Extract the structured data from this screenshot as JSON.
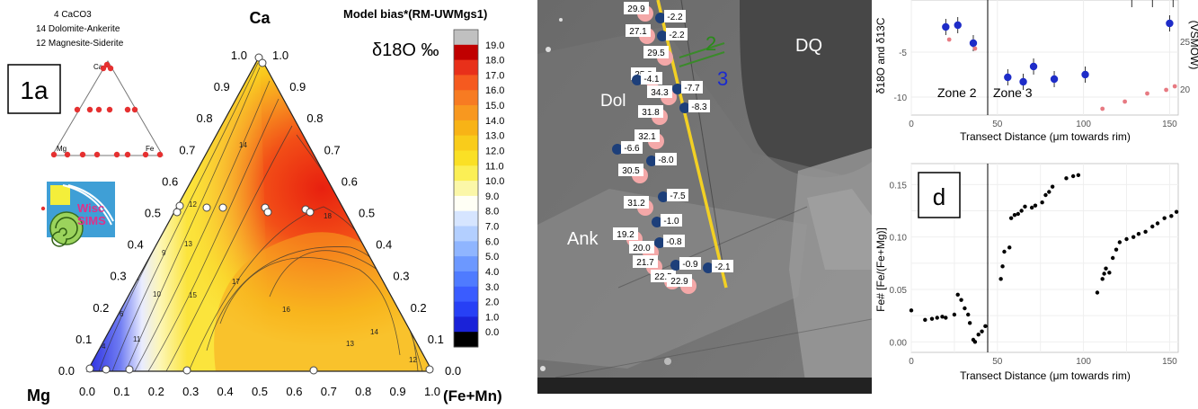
{
  "ternary": {
    "panel_label": "1a",
    "apex_top": "Ca",
    "apex_left": "Mg",
    "apex_right": "(Fe+Mn)",
    "legend_lines": [
      "4 CaCO3",
      "14 Dolomite-Ankerite",
      "12 Magnesite-Siderite"
    ],
    "inset_labels": {
      "top": "Ca",
      "left": "Mg",
      "right": "Fe"
    },
    "logo_text": [
      "Wisc",
      "SIMS"
    ],
    "colorbar_title": "Model bias*(RM-UWMgs1)",
    "colorbar_quantity": "δ18O ‰",
    "colorbar_ticks": [
      "19.0",
      "18.0",
      "17.0",
      "16.0",
      "15.0",
      "14.0",
      "13.0",
      "12.0",
      "11.0",
      "10.0",
      "9.0",
      "8.0",
      "7.0",
      "6.0",
      "5.0",
      "4.0",
      "3.0",
      "2.0",
      "1.0",
      "0.0"
    ],
    "colorbar_colors": [
      "#c0c0c0",
      "#c00000",
      "#e8301a",
      "#f55a1f",
      "#f77b22",
      "#f8981f",
      "#f8b316",
      "#f9cc1b",
      "#fae025",
      "#fbef55",
      "#fbf7a8",
      "#fffff5",
      "#d6e5ff",
      "#b3cfff",
      "#8fb5ff",
      "#6c98ff",
      "#4f7bff",
      "#3a5cff",
      "#2740f5",
      "#1a22d8",
      "#000000"
    ],
    "bottom_ticks": [
      "0.0",
      "0.1",
      "0.2",
      "0.3",
      "0.4",
      "0.5",
      "0.6",
      "0.7",
      "0.8",
      "0.9",
      "1.0"
    ],
    "left_ticks": [
      "1.0",
      "0.9",
      "0.8",
      "0.7",
      "0.6",
      "0.5",
      "0.4",
      "0.3",
      "0.2",
      "0.1",
      "0.0"
    ],
    "right_ticks": [
      "1.0",
      "0.9",
      "0.8",
      "0.7",
      "0.6",
      "0.5",
      "0.4",
      "0.3",
      "0.2",
      "0.1",
      "0.0"
    ],
    "contour_labels": [
      "4",
      "6",
      "8",
      "9",
      "10",
      "11",
      "12",
      "12",
      "13",
      "13",
      "14",
      "14",
      "15",
      "16",
      "17",
      "18"
    ]
  },
  "sem": {
    "labels": {
      "dol": "Dol",
      "ank": "Ank",
      "dq": "DQ",
      "n2": "2",
      "n3": "3"
    },
    "spots_pink": [
      "29.9",
      "27.1",
      "29.5",
      "25.8",
      "34.3",
      "31.8",
      "32.1",
      "30.5",
      "31.2",
      "19.2",
      "20.0",
      "21.7",
      "22.5",
      "22.9"
    ],
    "spots_blue": [
      "-2.2",
      "-2.2",
      "-4.1",
      "-7.7",
      "-8.3",
      "-6.6",
      "-8.0",
      "-7.5",
      "-1.0",
      "-0.8",
      "-0.9",
      "-2.1"
    ]
  },
  "chart_data": [
    {
      "type": "scatter",
      "xlabel": "Transect Distance (μm towards rim)",
      "ylabel": "δ18O and δ13C",
      "ylabel_right": "(VSMOW)",
      "xlim": [
        0,
        155
      ],
      "x_ticks": [
        "0",
        "50",
        "100",
        "150"
      ],
      "y_ticks": [
        "-5",
        "-10"
      ],
      "y_ticks_right": [
        "25",
        "20"
      ],
      "annotations": [
        "Zone 2",
        "Zone 3"
      ],
      "series": [
        {
          "x": [
            20,
            27,
            36,
            56,
            65,
            71,
            83,
            101,
            150
          ],
          "y": [
            -2.2,
            -2.0,
            -4.0,
            -7.8,
            -8.3,
            -6.6,
            -8.0,
            -7.5,
            -1.8
          ]
        },
        {
          "x": [
            22,
            37,
            111,
            124,
            137,
            148,
            153
          ],
          "y": [
            -3.6,
            -4.6,
            -11.3,
            -10.5,
            -9.6,
            -9.2,
            -8.8
          ]
        }
      ]
    },
    {
      "type": "scatter",
      "panel_label": "d",
      "xlabel": "Transect Distance (μm towards rim)",
      "ylabel": "Fe#   [Fe/(Fe+Mg)]",
      "xlim": [
        0,
        155
      ],
      "ylim": [
        -0.01,
        0.17
      ],
      "x_ticks": [
        "0",
        "50",
        "100",
        "150"
      ],
      "y_ticks": [
        "0.00",
        "0.05",
        "0.10",
        "0.15"
      ],
      "series": [
        {
          "x": [
            0,
            8,
            12,
            15,
            18,
            20,
            25,
            27,
            29,
            31,
            33,
            34,
            36,
            37,
            39,
            41,
            43,
            52,
            53,
            54,
            57,
            58,
            60,
            62,
            64,
            66,
            70,
            72,
            76,
            78,
            80,
            82,
            90,
            94,
            97,
            108,
            111,
            112,
            113,
            115,
            117,
            119,
            121,
            125,
            129,
            132,
            136,
            140,
            143,
            147,
            151,
            154
          ],
          "y": [
            0.03,
            0.021,
            0.022,
            0.023,
            0.024,
            0.023,
            0.026,
            0.045,
            0.04,
            0.032,
            0.026,
            0.018,
            0.002,
            0.0,
            0.007,
            0.01,
            0.015,
            0.06,
            0.072,
            0.086,
            0.09,
            0.118,
            0.121,
            0.122,
            0.125,
            0.129,
            0.128,
            0.13,
            0.133,
            0.14,
            0.143,
            0.148,
            0.156,
            0.158,
            0.159,
            0.047,
            0.06,
            0.065,
            0.07,
            0.066,
            0.08,
            0.088,
            0.095,
            0.098,
            0.1,
            0.103,
            0.105,
            0.11,
            0.113,
            0.118,
            0.12,
            0.124
          ]
        }
      ]
    }
  ]
}
